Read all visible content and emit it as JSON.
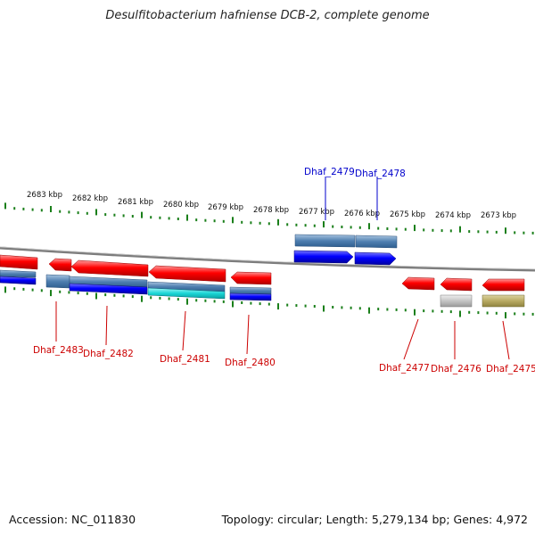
{
  "title": "Desulfitobacterium hafniense DCB-2, complete genome",
  "footer": {
    "accession": "Accession: NC_011830",
    "summary": "Topology: circular; Length: 5,279,134 bp; Genes: 4,972"
  },
  "colors": {
    "tick": "#1a7f1a",
    "backbone": "#808080",
    "forward_gene": "#0000ff",
    "reverse_gene": "#ff0000",
    "gene_label_forward": "#0000cc",
    "gene_label_reverse": "#cc0000"
  },
  "scale_labels": [
    "2683 kbp",
    "2682 kbp",
    "2681 kbp",
    "2680 kbp",
    "2679 kbp",
    "2678 kbp",
    "2677 kbp",
    "2676 kbp",
    "2675 kbp",
    "2674 kbp",
    "2673 kbp"
  ],
  "gene_labels": {
    "forward": [
      "Dhaf_2479",
      "Dhaf_2478"
    ],
    "reverse": [
      "Dhaf_2483",
      "Dhaf_2482",
      "Dhaf_2481",
      "Dhaf_2480",
      "Dhaf_2477",
      "Dhaf_2476",
      "Dhaf_2475"
    ]
  }
}
